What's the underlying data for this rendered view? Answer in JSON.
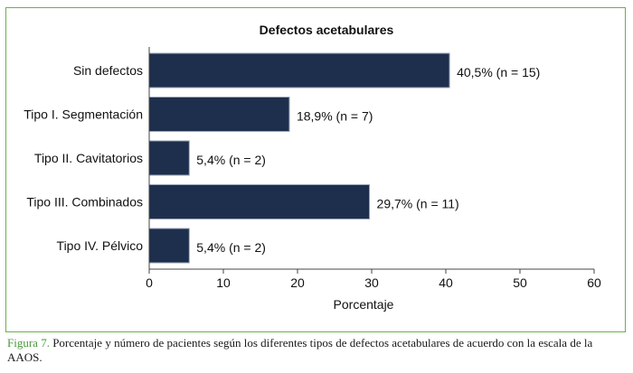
{
  "chart_data": {
    "type": "bar",
    "orientation": "horizontal",
    "title": "Defectos acetabulares",
    "xlabel": "Porcentaje",
    "ylabel": "",
    "xlim": [
      0,
      60
    ],
    "xticks": [
      "0",
      "10",
      "20",
      "30",
      "40",
      "50",
      "60"
    ],
    "categories": [
      "Sin defectos",
      "Tipo I. Segmentación",
      "Tipo II. Cavitatorios",
      "Tipo III. Combinados",
      "Tipo IV. Pélvico"
    ],
    "values": [
      40.5,
      18.9,
      5.4,
      29.7,
      5.4
    ],
    "data_labels": [
      "40,5% (n =  15)",
      "18,9% (n = 7)",
      "5,4% (n = 2)",
      "29,7% (n = 11)",
      "5,4% (n = 2)"
    ],
    "bar_color": "#1e2f4d",
    "grid": false,
    "legend": "none"
  },
  "caption": {
    "figure_label": "Figura 7.",
    "text": " Porcentaje y número de pacientes según los diferentes tipos de defectos acetabulares de acuerdo con la escala de la AAOS."
  },
  "frame_color": "#6ab04c"
}
